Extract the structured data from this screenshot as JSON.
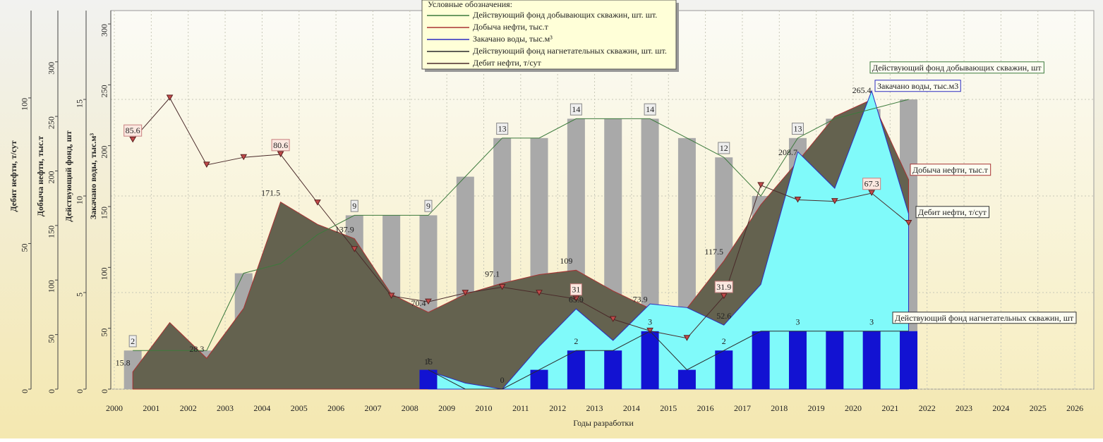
{
  "chart_data": {
    "type": "combo",
    "categories": [
      "2000",
      "2001",
      "2002",
      "2003",
      "2004",
      "2005",
      "2006",
      "2007",
      "2008",
      "2009",
      "2010",
      "2011",
      "2012",
      "2013",
      "2014",
      "2015",
      "2016",
      "2017",
      "2018",
      "2019",
      "2020",
      "2021",
      "2022",
      "2023",
      "2024",
      "2025",
      "2026"
    ],
    "xlabel": "Годы разработки",
    "ylabel": "Дебит нефти, т/сут",
    "ylim": [
      0,
      130
    ],
    "yticks": [
      0,
      50,
      100
    ],
    "y2label": "Добыча нефти, тыс.т",
    "y2lim": [
      0,
      347
    ],
    "y2ticks": [
      0,
      50,
      100,
      150,
      200,
      250,
      300
    ],
    "y3label": "Действующий фонд, шт",
    "y3lim": [
      0,
      19.6
    ],
    "y3ticks": [
      0,
      5,
      10,
      15
    ],
    "y4label": "Закачано воды, тыс.м³",
    "y4lim": [
      0,
      311
    ],
    "y4ticks": [
      0,
      50,
      100,
      150,
      200,
      250,
      300
    ],
    "grid": true,
    "legend_title": "Условные обозначения:",
    "series": [
      {
        "name": "Действующий фонд добывающих скважин, шт. шт.",
        "type": "bar_line",
        "axis": "y3",
        "color": "#a9a9a9",
        "line_color": "#3c7a3c",
        "values": [
          2,
          2,
          2,
          6,
          6.5,
          8,
          9,
          9,
          9,
          11,
          13,
          13,
          14,
          14,
          14,
          13,
          12,
          10,
          13,
          14,
          14.5,
          15,
          null,
          null,
          null,
          null,
          null
        ],
        "value_labels": [
          "2",
          null,
          null,
          null,
          null,
          null,
          "9",
          null,
          "9",
          null,
          "13",
          null,
          "14",
          null,
          "14",
          null,
          "12",
          null,
          "13",
          null,
          null,
          null,
          null,
          null,
          null,
          null,
          null
        ]
      },
      {
        "name": "Добыча нефти, тыс.т",
        "type": "area",
        "axis": "y2",
        "color": "#64624f",
        "line_color": "#a83232",
        "values": [
          15.8,
          61,
          28.3,
          74,
          171.5,
          151,
          137.9,
          87,
          70.4,
          87,
          97.1,
          105,
          109,
          90,
          73.9,
          74,
          117.5,
          169,
          208.7,
          250,
          265.4,
          192,
          null,
          null,
          null,
          null,
          null
        ],
        "value_labels": [
          "15.8",
          null,
          "28.3",
          null,
          "171.5",
          null,
          "137.9",
          null,
          "70.4",
          null,
          "97.1",
          null,
          "109",
          null,
          "73.9",
          null,
          "117.5",
          null,
          "208.7",
          null,
          "265.4",
          null,
          null,
          null,
          null,
          null,
          null
        ]
      },
      {
        "name": "Закачано воды, тыс.м³",
        "type": "area",
        "axis": "y4",
        "color": "#80fafa",
        "line_color": "#2b2bc0",
        "values": [
          null,
          null,
          null,
          null,
          null,
          null,
          null,
          null,
          15,
          5,
          0,
          35,
          65.9,
          40,
          70,
          67,
          52.6,
          86,
          195,
          165,
          245,
          144,
          null,
          null,
          null,
          null,
          null
        ],
        "value_labels": [
          null,
          null,
          null,
          null,
          null,
          null,
          null,
          null,
          "15",
          null,
          "0",
          null,
          "65.9",
          null,
          null,
          null,
          "52.6",
          null,
          null,
          null,
          null,
          null,
          null,
          null,
          null,
          null,
          null
        ]
      },
      {
        "name": "Действующий фонд нагнетательных скважин, шт. шт.",
        "type": "bar_line",
        "axis": "y3",
        "color": "#1212d2",
        "line_color": "#2a2a2a",
        "values": [
          null,
          null,
          null,
          null,
          null,
          null,
          null,
          null,
          1,
          0,
          0,
          1,
          2,
          2,
          3,
          1,
          2,
          3,
          3,
          3,
          3,
          3,
          null,
          null,
          null,
          null,
          null
        ],
        "value_labels": [
          null,
          null,
          null,
          null,
          null,
          null,
          null,
          null,
          "1",
          null,
          null,
          null,
          "2",
          null,
          "3",
          null,
          "2",
          null,
          "3",
          null,
          "3",
          null,
          null,
          null,
          null,
          null,
          null
        ]
      },
      {
        "name": "Дебит нефти, т/сут",
        "type": "line",
        "axis": "y",
        "color": "#c24a4a",
        "line_color": "#4a2a2a",
        "values": [
          85.6,
          100,
          77,
          79.6,
          80.6,
          64,
          48,
          32,
          30,
          33,
          35,
          33,
          31,
          24,
          20,
          17.5,
          31.9,
          70,
          65,
          64.5,
          67.3,
          57,
          null,
          null,
          null,
          null,
          null
        ],
        "value_labels": [
          "85.6",
          null,
          null,
          null,
          "80.6",
          null,
          null,
          null,
          null,
          null,
          null,
          null,
          "31",
          null,
          null,
          null,
          "31.9",
          null,
          null,
          null,
          "67.3",
          null,
          null,
          null,
          null,
          null,
          null
        ]
      }
    ],
    "annotations": [
      {
        "text": "Действующий фонд добывающих скважин, шт",
        "color": "#3c7a3c"
      },
      {
        "text": "Закачано воды, тыс.м3",
        "color": "#2b2bc0"
      },
      {
        "text": "Добыча нефти, тыс.т",
        "color": "#a83232"
      },
      {
        "text": "Дебит нефти, т/сут",
        "color": "#333333"
      },
      {
        "text": "Действующий фонд нагнетательных скважин, шт",
        "color": "#333333"
      }
    ]
  }
}
